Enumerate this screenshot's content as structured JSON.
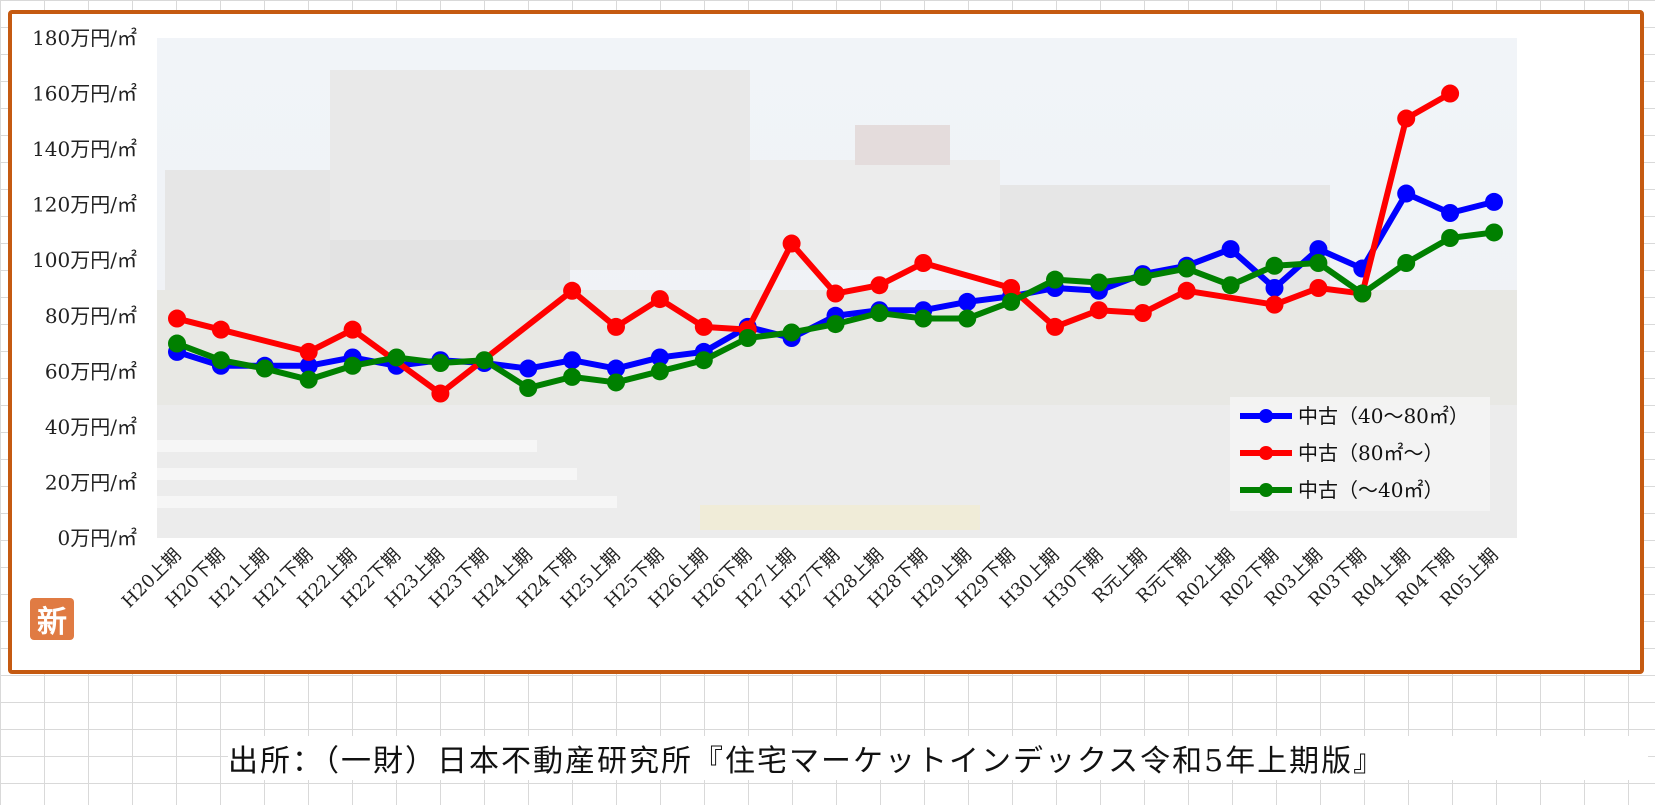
{
  "chart_data": {
    "type": "line",
    "title": "",
    "xlabel": "",
    "ylabel": "",
    "ylim": [
      0,
      180
    ],
    "yticks": [
      {
        "value": 0,
        "label": "0万円/㎡"
      },
      {
        "value": 20,
        "label": "20万円/㎡"
      },
      {
        "value": 40,
        "label": "40万円/㎡"
      },
      {
        "value": 60,
        "label": "60万円/㎡"
      },
      {
        "value": 80,
        "label": "80万円/㎡"
      },
      {
        "value": 100,
        "label": "100万円/㎡"
      },
      {
        "value": 120,
        "label": "120万円/㎡"
      },
      {
        "value": 140,
        "label": "140万円/㎡"
      },
      {
        "value": 160,
        "label": "160万円/㎡"
      },
      {
        "value": 180,
        "label": "180万円/㎡"
      }
    ],
    "categories": [
      "H20上期",
      "H20下期",
      "H21上期",
      "H21下期",
      "H22上期",
      "H22下期",
      "H23上期",
      "H23下期",
      "H24上期",
      "H24下期",
      "H25上期",
      "H25下期",
      "H26上期",
      "H26下期",
      "H27上期",
      "H27下期",
      "H28上期",
      "H28下期",
      "H29上期",
      "H29下期",
      "H30上期",
      "H30下期",
      "R元上期",
      "R元下期",
      "R02上期",
      "R02下期",
      "R03上期",
      "R03下期",
      "R04上期",
      "R04下期",
      "R05上期"
    ],
    "series": [
      {
        "name": "中古（40～80㎡）",
        "color": "#0000ff",
        "values": [
          67,
          62,
          62,
          62,
          65,
          62,
          64,
          63,
          61,
          64,
          61,
          65,
          67,
          76,
          72,
          80,
          82,
          82,
          85,
          87,
          90,
          89,
          95,
          98,
          104,
          90,
          104,
          97,
          124,
          117,
          121
        ]
      },
      {
        "name": "中古（80㎡～）",
        "color": "#ff0000",
        "values": [
          79,
          75,
          null,
          67,
          75,
          null,
          52,
          null,
          null,
          89,
          76,
          86,
          76,
          75,
          106,
          88,
          91,
          99,
          null,
          90,
          76,
          82,
          81,
          89,
          null,
          84,
          90,
          88,
          151,
          160,
          null
        ]
      },
      {
        "name": "中古（～40㎡）",
        "color": "#008000",
        "values": [
          70,
          64,
          61,
          57,
          62,
          65,
          63,
          64,
          54,
          58,
          56,
          60,
          64,
          72,
          74,
          77,
          81,
          79,
          79,
          85,
          93,
          92,
          94,
          97,
          91,
          98,
          99,
          88,
          99,
          108,
          110
        ]
      }
    ],
    "legend_position": "right-bottom inside plot",
    "grid": false
  },
  "stamp": "新",
  "source_note": "出所：（一財）日本不動産研究所『住宅マーケットインデックス令和5年上期版』"
}
